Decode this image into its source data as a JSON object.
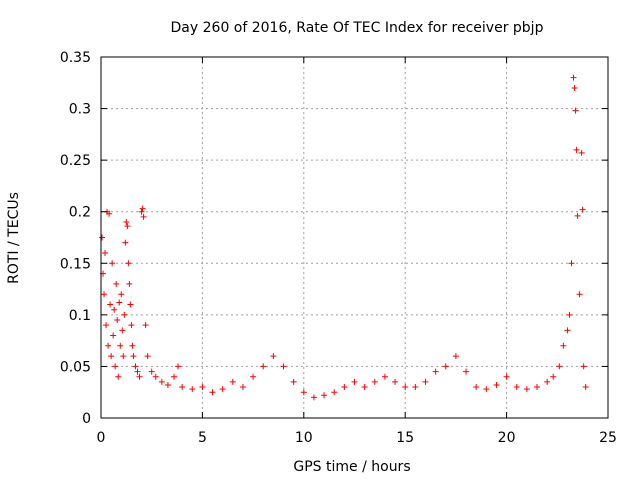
{
  "chart_data": {
    "type": "scatter",
    "title": "Day 260 of 2016, Rate Of TEC Index for receiver pbjp",
    "xlabel": "GPS time / hours",
    "ylabel": "ROTI / TECUs",
    "xlim": [
      0,
      25
    ],
    "ylim": [
      0,
      0.35
    ],
    "xticks": [
      0,
      5,
      10,
      15,
      20,
      25
    ],
    "yticks": [
      0,
      0.05,
      0.1,
      0.15,
      0.2,
      0.25,
      0.3,
      0.35
    ],
    "xtick_labels": [
      "0",
      "5",
      "10",
      "15",
      "20",
      "25"
    ],
    "ytick_labels": [
      "0",
      "0.05",
      "0.1",
      "0.15",
      "0.2",
      "0.25",
      "0.3",
      "0.35"
    ],
    "grid": true,
    "marker": "+",
    "color": "#ff0000",
    "series": [
      {
        "name": "ROTI",
        "points": [
          [
            0.05,
            0.175
          ],
          [
            0.1,
            0.14
          ],
          [
            0.15,
            0.12
          ],
          [
            0.2,
            0.16
          ],
          [
            0.25,
            0.09
          ],
          [
            0.3,
            0.2
          ],
          [
            0.35,
            0.07
          ],
          [
            0.4,
            0.198
          ],
          [
            0.45,
            0.11
          ],
          [
            0.5,
            0.06
          ],
          [
            0.55,
            0.15
          ],
          [
            0.6,
            0.08
          ],
          [
            0.65,
            0.105
          ],
          [
            0.7,
            0.05
          ],
          [
            0.75,
            0.13
          ],
          [
            0.8,
            0.095
          ],
          [
            0.85,
            0.04
          ],
          [
            0.9,
            0.112
          ],
          [
            0.95,
            0.07
          ],
          [
            1.0,
            0.12
          ],
          [
            1.05,
            0.085
          ],
          [
            1.1,
            0.06
          ],
          [
            1.15,
            0.1
          ],
          [
            1.2,
            0.17
          ],
          [
            1.25,
            0.19
          ],
          [
            1.3,
            0.186
          ],
          [
            1.35,
            0.15
          ],
          [
            1.4,
            0.13
          ],
          [
            1.45,
            0.11
          ],
          [
            1.5,
            0.09
          ],
          [
            1.55,
            0.07
          ],
          [
            1.6,
            0.06
          ],
          [
            1.7,
            0.05
          ],
          [
            1.8,
            0.045
          ],
          [
            1.9,
            0.04
          ],
          [
            2.0,
            0.2
          ],
          [
            2.05,
            0.203
          ],
          [
            2.1,
            0.195
          ],
          [
            2.2,
            0.09
          ],
          [
            2.3,
            0.06
          ],
          [
            2.5,
            0.045
          ],
          [
            2.7,
            0.04
          ],
          [
            3.0,
            0.035
          ],
          [
            3.3,
            0.032
          ],
          [
            3.6,
            0.04
          ],
          [
            3.8,
            0.05
          ],
          [
            4.0,
            0.03
          ],
          [
            4.5,
            0.028
          ],
          [
            5.0,
            0.03
          ],
          [
            5.5,
            0.025
          ],
          [
            6.0,
            0.028
          ],
          [
            6.5,
            0.035
          ],
          [
            7.0,
            0.03
          ],
          [
            7.5,
            0.04
          ],
          [
            8.0,
            0.05
          ],
          [
            8.5,
            0.06
          ],
          [
            9.0,
            0.05
          ],
          [
            9.5,
            0.035
          ],
          [
            10.0,
            0.025
          ],
          [
            10.5,
            0.02
          ],
          [
            11.0,
            0.022
          ],
          [
            11.5,
            0.025
          ],
          [
            12.0,
            0.03
          ],
          [
            12.5,
            0.035
          ],
          [
            13.0,
            0.03
          ],
          [
            13.5,
            0.035
          ],
          [
            14.0,
            0.04
          ],
          [
            14.5,
            0.035
          ],
          [
            15.0,
            0.03
          ],
          [
            15.5,
            0.03
          ],
          [
            16.0,
            0.035
          ],
          [
            16.5,
            0.045
          ],
          [
            17.0,
            0.05
          ],
          [
            17.5,
            0.06
          ],
          [
            18.0,
            0.045
          ],
          [
            18.5,
            0.03
          ],
          [
            19.0,
            0.028
          ],
          [
            19.5,
            0.032
          ],
          [
            20.0,
            0.04
          ],
          [
            20.5,
            0.03
          ],
          [
            21.0,
            0.028
          ],
          [
            21.5,
            0.03
          ],
          [
            22.0,
            0.035
          ],
          [
            22.3,
            0.04
          ],
          [
            22.6,
            0.05
          ],
          [
            22.8,
            0.07
          ],
          [
            23.0,
            0.085
          ],
          [
            23.1,
            0.1
          ],
          [
            23.2,
            0.15
          ],
          [
            23.3,
            0.33
          ],
          [
            23.35,
            0.32
          ],
          [
            23.4,
            0.298
          ],
          [
            23.45,
            0.26
          ],
          [
            23.5,
            0.196
          ],
          [
            23.6,
            0.12
          ],
          [
            23.7,
            0.257
          ],
          [
            23.75,
            0.202
          ],
          [
            23.8,
            0.05
          ],
          [
            23.9,
            0.03
          ]
        ]
      }
    ]
  }
}
